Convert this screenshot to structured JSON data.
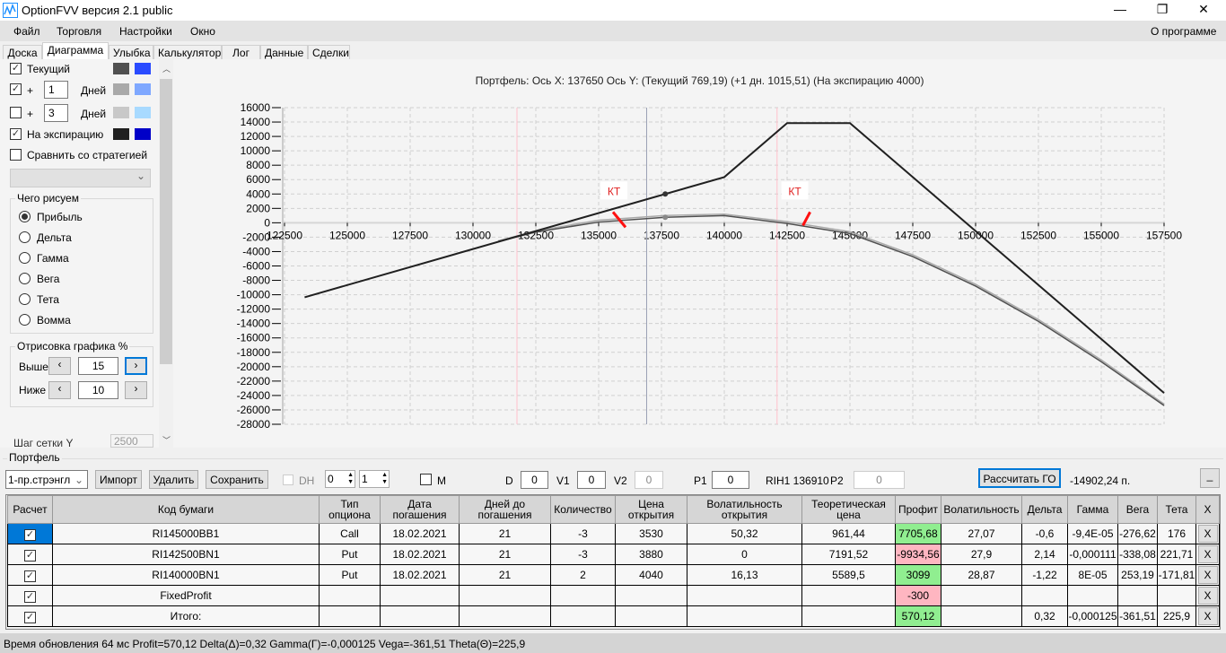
{
  "window": {
    "title": "OptionFVV версия 2.1 public",
    "icon": "app-chart-icon"
  },
  "menu": [
    "Файл",
    "Торговля",
    "Настройки",
    "Окно"
  ],
  "menu_right": "О программе",
  "tabs": [
    "Доска",
    "Диаграмма",
    "Улыбка",
    "Калькулятор",
    "Лог",
    "Данные",
    "Сделки"
  ],
  "active_tab": "Диаграмма",
  "left": {
    "current": {
      "label": "Текущий",
      "checked": true,
      "colors": [
        "#505050",
        "#2a4bff"
      ]
    },
    "plus1": {
      "plus": "+",
      "value": "1",
      "unit": "Дней",
      "checked": true,
      "colors": [
        "#a9a9a9",
        "#7fa8ff"
      ]
    },
    "plus3": {
      "plus": "+",
      "value": "3",
      "unit": "Дней",
      "checked": false,
      "colors": [
        "#c8c8c8",
        "#a8daff"
      ]
    },
    "expiry": {
      "label": "На экспирацию",
      "checked": true,
      "colors": [
        "#202020",
        "#0000c8"
      ]
    },
    "compare": {
      "label": "Сравнить со стратегией",
      "checked": false
    },
    "draw_group": "Чего рисуем",
    "radios": [
      "Прибыль",
      "Дельта",
      "Гамма",
      "Вега",
      "Тета",
      "Вомма"
    ],
    "radio_selected": 0,
    "percent_group": "Отрисовка графика %",
    "above": {
      "label": "Выше",
      "value": "15"
    },
    "below": {
      "label": "Ниже",
      "value": "10"
    },
    "grid_step": {
      "label": "Шаг сетки Y",
      "value": "2500"
    }
  },
  "chart_data": {
    "type": "line",
    "title": "Портфель: Ось X: 137650 Ось Y:  (Текущий 769,19)  (+1 дн. 1015,51)  (На экспирацию 4000)",
    "xlim": [
      122500,
      157500
    ],
    "ylim": [
      -28000,
      16000
    ],
    "xticks": [
      "122500",
      "125000",
      "127500",
      "130000",
      "132500",
      "135000",
      "137500",
      "140000",
      "142500",
      "145000",
      "147500",
      "150000",
      "152500",
      "155000",
      "157500"
    ],
    "yticks": [
      "16000",
      "14000",
      "12000",
      "10000",
      "8000",
      "6000",
      "4000",
      "2000",
      "0",
      "-2000",
      "-4000",
      "-6000",
      "-8000",
      "-10000",
      "-12000",
      "-14000",
      "-16000",
      "-18000",
      "-20000",
      "-22000",
      "-24000",
      "-26000",
      "-28000"
    ],
    "grid": true,
    "series": [
      {
        "name": "На экспирацию",
        "color": "#202020",
        "x": [
          123300,
          140000,
          142500,
          145000,
          157500
        ],
        "y": [
          -10350,
          6350,
          13850,
          13850,
          -23650
        ]
      },
      {
        "name": "Текущий",
        "color": "#505050",
        "x": [
          131000,
          132500,
          135000,
          137650,
          140000,
          142500,
          145000,
          147500,
          150000,
          152500,
          155000,
          157500
        ],
        "y": [
          -2600,
          -1300,
          100,
          769,
          1000,
          -100,
          -1500,
          -4700,
          -8800,
          -13700,
          -19300,
          -25400
        ]
      },
      {
        "name": "+1 дн.",
        "color": "#a9a9a9",
        "x": [
          131000,
          132500,
          135000,
          137650,
          140000,
          142500,
          145000,
          147500,
          150000,
          152500,
          155000,
          157500
        ],
        "y": [
          -2500,
          -1150,
          350,
          1015,
          1200,
          150,
          -1250,
          -4450,
          -8550,
          -13450,
          -19050,
          -25200
        ]
      }
    ],
    "markers": [
      {
        "x": 137650,
        "y": 4000
      },
      {
        "x": 137650,
        "y": 769
      }
    ],
    "vlines": [
      {
        "x": 131750,
        "color": "#ffc0cb"
      },
      {
        "x": 136910,
        "color": "#9aa0b4"
      },
      {
        "x": 142100,
        "color": "#ffc0cb"
      }
    ],
    "annotations": [
      {
        "text": "КТ",
        "x": 136000,
        "y": 0
      },
      {
        "text": "КТ",
        "x": 143200,
        "y": 0
      }
    ]
  },
  "portfolio": {
    "title": "Портфель",
    "strategy": "1-пр.стрэнгл",
    "import": "Импорт",
    "delete": "Удалить",
    "save": "Сохранить",
    "dh": "DH",
    "spin1": "0",
    "spin2": "1",
    "m": "M",
    "d_label": "D",
    "d": "0",
    "v1_label": "V1",
    "v1": "0",
    "v2_label": "V2",
    "v2": "0",
    "p1_label": "P1",
    "p1": "0",
    "rih": "RIH1 136910",
    "p2_label": "P2",
    "p2": "0",
    "calc_go": "Рассчитать ГО",
    "go_value": "-14902,24 п.",
    "minimize": "_"
  },
  "table": {
    "headers": [
      "Расчет",
      "Код бумаги",
      "Тип опциона",
      "Дата погашения",
      "Дней до погашения",
      "Количество",
      "Цена открытия",
      "Волатильность открытия",
      "Теоретическая цена",
      "Профит",
      "Волатильность",
      "Дельта",
      "Гамма",
      "Вега",
      "Тета",
      "X"
    ],
    "rows": [
      [
        "RI145000BB1",
        "Call",
        "18.02.2021",
        "21",
        "-3",
        "3530",
        "50,32",
        "961,44",
        "7705,68",
        "27,07",
        "-0,6",
        "-9,4E-05",
        "-276,62",
        "176"
      ],
      [
        "RI142500BN1",
        "Put",
        "18.02.2021",
        "21",
        "-3",
        "3880",
        "0",
        "7191,52",
        "-9934,56",
        "27,9",
        "2,14",
        "-0,000111",
        "-338,08",
        "221,71"
      ],
      [
        "RI140000BN1",
        "Put",
        "18.02.2021",
        "21",
        "2",
        "4040",
        "16,13",
        "5589,5",
        "3099",
        "28,87",
        "-1,22",
        "8E-05",
        "253,19",
        "-171,81"
      ],
      [
        "FixedProfit",
        "",
        "",
        "",
        "",
        "",
        "",
        "",
        "-300",
        "",
        "",
        "",
        "",
        ""
      ],
      [
        "Итого:",
        "",
        "",
        "",
        "",
        "",
        "",
        "",
        "570,12",
        "",
        "0,32",
        "-0,000125",
        "-361,51",
        "225,9"
      ]
    ],
    "profit_colors": [
      "#90ee90",
      "#ffb6c1",
      "#90ee90",
      "#ffb6c1",
      "#90ee90"
    ],
    "delete_label": "X"
  },
  "status": "Время обновления 64 мс  Profit=570,12 Delta(Δ)=0,32 Gamma(Γ)=-0,000125 Vega=-361,51 Theta(Θ)=225,9"
}
